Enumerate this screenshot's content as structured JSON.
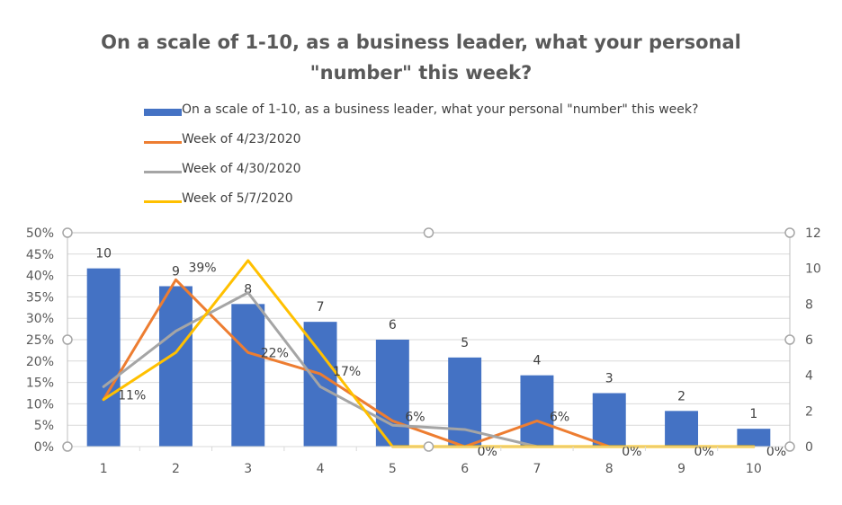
{
  "title": "On a scale of 1-10, as a business leader, what your personal\n\"number\" this week?",
  "colors": {
    "bars": "#4472C4",
    "week1": "#ED7D31",
    "week2": "#A5A5A5",
    "week3": "#FFC000",
    "text": "#595959",
    "grid": "#D9D9D9"
  },
  "legend": [
    {
      "label": "On a scale of 1-10, as a business leader, what your personal \"number\" this week?",
      "kind": "bar",
      "color": "#4472C4"
    },
    {
      "label": "Week of 4/23/2020",
      "kind": "line",
      "color": "#ED7D31"
    },
    {
      "label": "Week of 4/30/2020",
      "kind": "line",
      "color": "#A5A5A5"
    },
    {
      "label": "Week of 5/7/2020",
      "kind": "line",
      "color": "#FFC000"
    }
  ],
  "chart_data": {
    "type": "bar",
    "categories": [
      "1",
      "2",
      "3",
      "4",
      "5",
      "6",
      "7",
      "8",
      "9",
      "10"
    ],
    "bars": {
      "name": "On a scale of 1-10, as a business leader, what your personal \"number\" this week?",
      "values": [
        10,
        9,
        8,
        7,
        6,
        5,
        4,
        3,
        2,
        1
      ],
      "labels": [
        "10",
        "9",
        "8",
        "7",
        "6",
        "5",
        "4",
        "3",
        "2",
        "1"
      ]
    },
    "lines": [
      {
        "name": "Week of 4/23/2020",
        "values": [
          0.11,
          0.39,
          0.22,
          0.17,
          0.06,
          0.0,
          0.06,
          0.0,
          0.0,
          0.0
        ],
        "labels": [
          "11%",
          "39%",
          "22%",
          "17%",
          "6%",
          "0%",
          "6%",
          "0%",
          "0%",
          "0%"
        ]
      },
      {
        "name": "Week of 4/30/2020",
        "values": [
          0.14,
          0.27,
          0.36,
          0.14,
          0.05,
          0.04,
          0.0,
          0.0,
          0.0,
          0.0
        ]
      },
      {
        "name": "Week of 5/7/2020",
        "values": [
          0.11,
          0.22,
          0.435,
          0.22,
          0.0,
          0.0,
          0.0,
          0.0,
          0.0,
          0.0
        ]
      }
    ],
    "y_left": {
      "ticks": [
        "0%",
        "5%",
        "10%",
        "15%",
        "20%",
        "25%",
        "30%",
        "35%",
        "40%",
        "45%",
        "50%"
      ],
      "range": [
        0,
        0.5
      ]
    },
    "y_right": {
      "ticks": [
        "0",
        "2",
        "4",
        "6",
        "8",
        "10",
        "12"
      ],
      "range": [
        0,
        12
      ]
    },
    "grid": true,
    "legend_position": "top"
  }
}
